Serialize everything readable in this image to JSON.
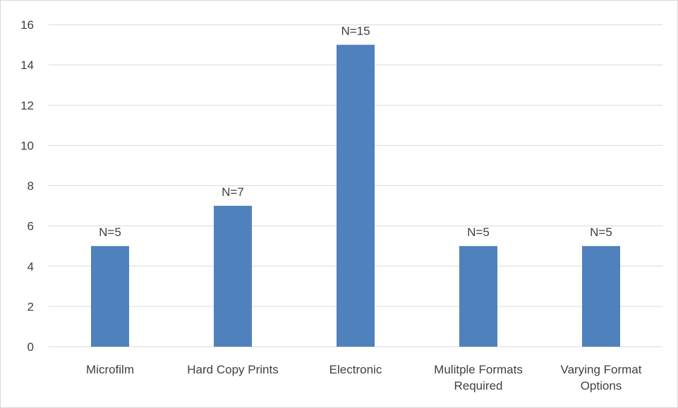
{
  "chart_data": {
    "type": "bar",
    "categories": [
      [
        "Microfilm"
      ],
      [
        "Hard Copy Prints"
      ],
      [
        "Electronic"
      ],
      [
        "Mulitple Formats",
        "Required"
      ],
      [
        "Varying Format",
        "Options"
      ]
    ],
    "values": [
      5,
      7,
      15,
      5,
      5
    ],
    "data_labels": [
      "N=5",
      "N=7",
      "N=15",
      "N=5",
      "N=5"
    ],
    "ylim": [
      0,
      16
    ],
    "yticks": [
      "0",
      "2",
      "4",
      "6",
      "8",
      "10",
      "12",
      "14",
      "16"
    ],
    "grid": true,
    "legend": "none",
    "title": "",
    "xlabel": "",
    "ylabel": "",
    "colors": {
      "bar": "#4f81bd",
      "grid": "#d9d9d9",
      "text": "#404040"
    }
  }
}
